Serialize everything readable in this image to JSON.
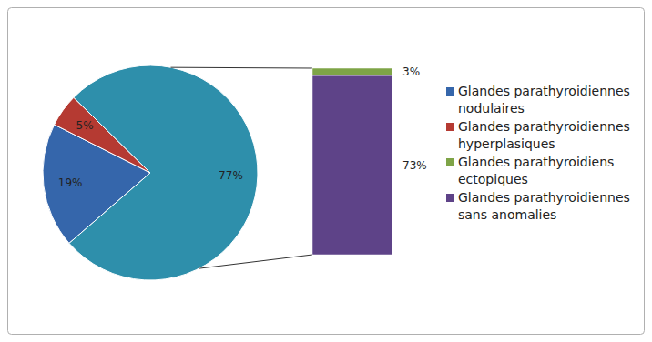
{
  "chart_data": {
    "type": "bar-of-pie",
    "categories": [
      "Glandes parathyroidiennes nodulaires",
      "Glandes parathyroidiennes hyperplasiques",
      null
    ],
    "values": [
      19,
      5,
      77
    ],
    "value_labels": [
      "19%",
      "5%",
      "77%"
    ],
    "colors": [
      "#3566ab",
      "#b53a32",
      "#2e8fab"
    ],
    "data_labels": true,
    "legend": "right",
    "secondary": {
      "categories": [
        "Glandes parathyroidiens ectopiques",
        "Glandes parathyroidiennes sans anomalies"
      ],
      "values": [
        3,
        73
      ],
      "value_labels": [
        "3%",
        "73%"
      ],
      "colors": [
        "#7ea447",
        "#5e4388"
      ]
    }
  }
}
